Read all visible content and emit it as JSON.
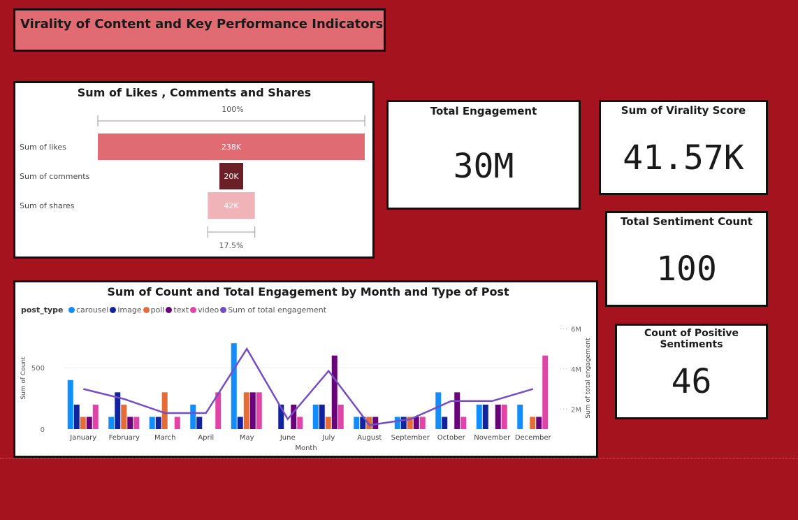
{
  "page_title": "Virality of Content and Key Performance Indicators",
  "colors": {
    "background": "#a5131e",
    "title_box": "#e06b73"
  },
  "funnel": {
    "title": "Sum of Likes , Comments and Shares",
    "top_pct": "100%",
    "bottom_pct": "17.5%",
    "stages": [
      {
        "label": "Sum of likes",
        "value": 238000,
        "display": "238K",
        "color": "#e06b73"
      },
      {
        "label": "Sum of comments",
        "value": 20000,
        "display": "20K",
        "color": "#6b1f27"
      },
      {
        "label": "Sum of shares",
        "value": 42000,
        "display": "42K",
        "color": "#efb3b8"
      }
    ]
  },
  "kpis": {
    "total_engagement": {
      "title": "Total Engagement",
      "value": "30M"
    },
    "virality": {
      "title": "Sum of Virality Score",
      "value": "41.57K"
    },
    "sentiment": {
      "title": "Total Sentiment Count",
      "value": "100"
    },
    "positive": {
      "title": "Count of Positive Sentiments",
      "value": "46"
    }
  },
  "chart_data": {
    "type": "bar",
    "title": "Sum of Count and Total Engagement by Month and Type of Post",
    "xlabel": "Month",
    "ylabel": "Sum of Count",
    "y2label": "Sum of total engagement",
    "legend_title": "post_type",
    "legend_position": "top-left",
    "categories": [
      "January",
      "February",
      "March",
      "April",
      "May",
      "June",
      "July",
      "August",
      "September",
      "October",
      "November",
      "December"
    ],
    "ylim": [
      0,
      900
    ],
    "y_ticks": [
      0,
      500
    ],
    "y2lim": [
      1000000,
      6500000
    ],
    "y2_ticks": [
      {
        "v": 2000000,
        "label": "2M"
      },
      {
        "v": 4000000,
        "label": "4M"
      },
      {
        "v": 6000000,
        "label": "6M"
      }
    ],
    "series": [
      {
        "name": "carousel",
        "color": "#118dff",
        "values": [
          400,
          100,
          100,
          200,
          700,
          0,
          200,
          100,
          100,
          300,
          200,
          200
        ]
      },
      {
        "name": "image",
        "color": "#12239e",
        "values": [
          200,
          300,
          100,
          100,
          100,
          200,
          200,
          100,
          100,
          100,
          200,
          0
        ]
      },
      {
        "name": "poll",
        "color": "#e66c37",
        "values": [
          100,
          200,
          300,
          0,
          300,
          0,
          100,
          100,
          100,
          0,
          0,
          100
        ]
      },
      {
        "name": "text",
        "color": "#6b007b",
        "values": [
          100,
          100,
          0,
          0,
          300,
          200,
          600,
          100,
          100,
          300,
          200,
          100
        ]
      },
      {
        "name": "video",
        "color": "#e044a7",
        "values": [
          200,
          100,
          100,
          300,
          300,
          100,
          200,
          0,
          100,
          100,
          200,
          600
        ]
      }
    ],
    "line": {
      "name": "Sum of total engagement",
      "color": "#744ec2",
      "values": [
        3000000,
        2500000,
        1800000,
        1800000,
        5000000,
        1500000,
        3900000,
        1200000,
        1500000,
        2400000,
        2400000,
        3000000
      ]
    }
  }
}
